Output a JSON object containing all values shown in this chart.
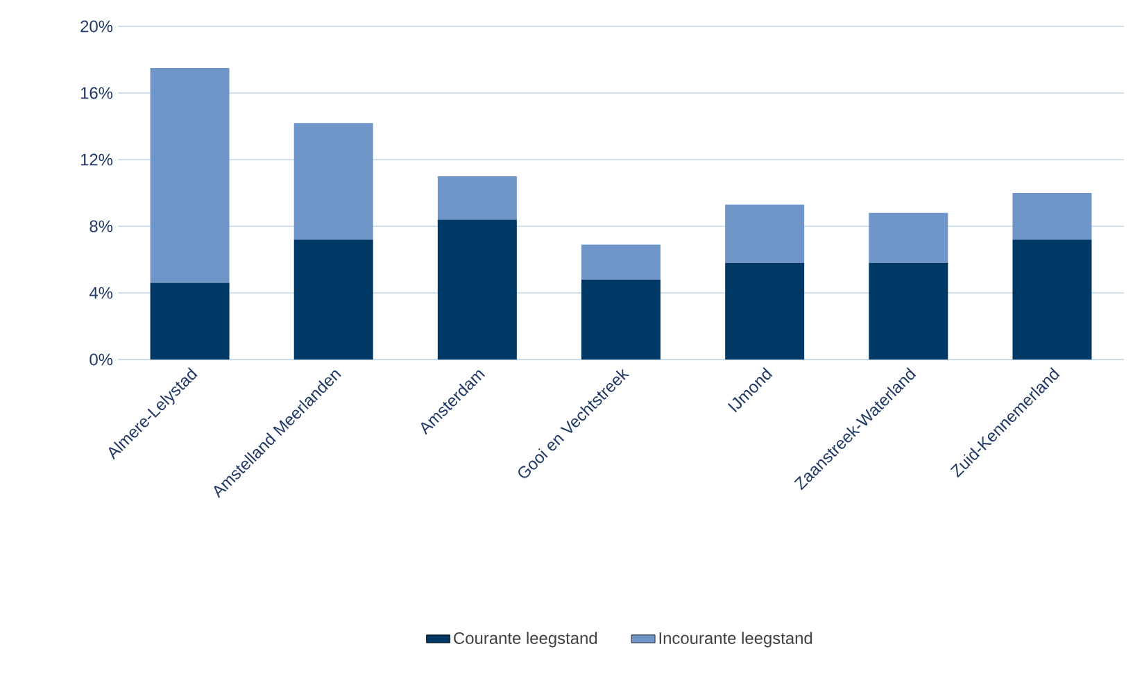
{
  "chart_data": {
    "type": "bar",
    "stacked": true,
    "categories": [
      "Almere-Lelystad",
      "Amstelland Meerlanden",
      "Amsterdam",
      "Gooi en Vechtstreek",
      "IJmond",
      "Zaanstreek-Waterland",
      "Zuid-Kennemerland"
    ],
    "series": [
      {
        "name": "Courante leegstand",
        "color": "#003865",
        "values": [
          4.6,
          7.2,
          8.4,
          4.8,
          5.8,
          5.8,
          7.2
        ]
      },
      {
        "name": "Incourante leegstand",
        "color": "#7096c9",
        "values": [
          12.9,
          7.0,
          2.6,
          2.1,
          3.5,
          3.0,
          2.8
        ]
      }
    ],
    "ylim": [
      0,
      20
    ],
    "yticks": [
      {
        "value": 0,
        "label": "0%"
      },
      {
        "value": 4,
        "label": "4%"
      },
      {
        "value": 8,
        "label": "8%"
      },
      {
        "value": 12,
        "label": "12%"
      },
      {
        "value": 16,
        "label": "16%"
      },
      {
        "value": 20,
        "label": "20%"
      }
    ],
    "grid": "y",
    "legend": "bottom"
  }
}
